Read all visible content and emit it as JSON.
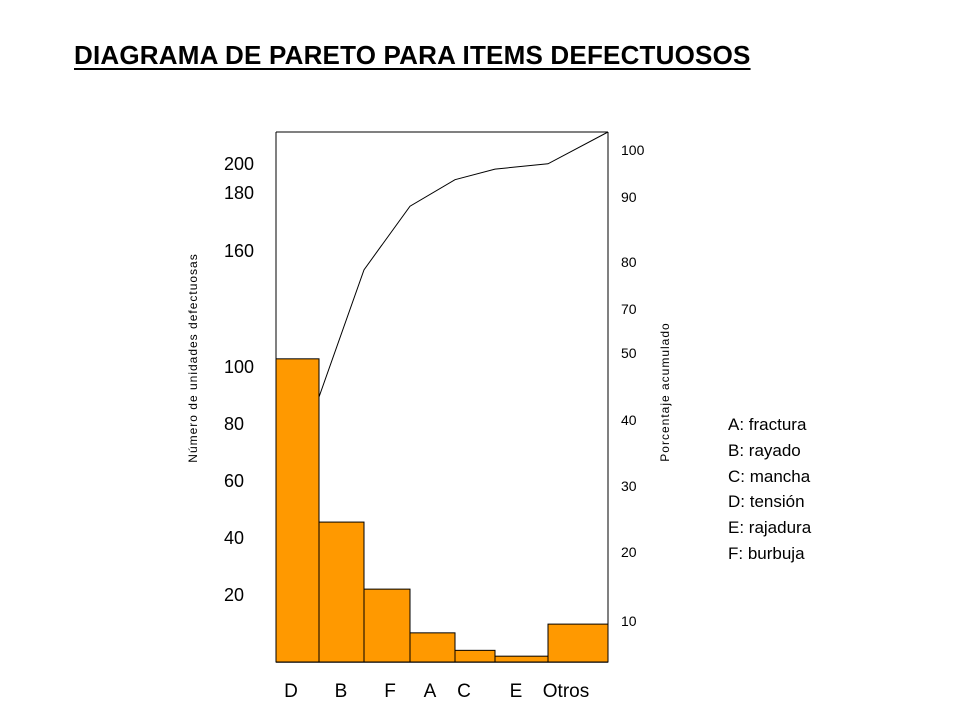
{
  "chart_data": {
    "type": "bar",
    "title": "DIAGRAMA DE PARETO PARA ITEMS DEFECTUOSOS",
    "ylabel": "Número de unidades defectuosas",
    "y2label": "Porcentaje acumulado",
    "categories": [
      "D",
      "B",
      "F",
      "A",
      "C",
      "E",
      "Otros"
    ],
    "values": [
      104,
      48,
      25,
      10,
      4,
      2,
      13
    ],
    "cumulative_percent": [
      50,
      74,
      86,
      91,
      93,
      94,
      100
    ],
    "left_ticks": [
      "20",
      "40",
      "60",
      "80",
      "100",
      "160",
      "180",
      "200"
    ],
    "right_ticks": [
      "10",
      "20",
      "30",
      "40",
      "50",
      "70",
      "80",
      "90",
      "100"
    ],
    "legend_position": "right",
    "grid": false,
    "colors": {
      "bar": "#FF9900",
      "line": "#000000"
    }
  },
  "legend": [
    "A: fractura",
    "B: rayado",
    "C: mancha",
    "D: tensión",
    "E: rajadura",
    "F: burbuja"
  ]
}
